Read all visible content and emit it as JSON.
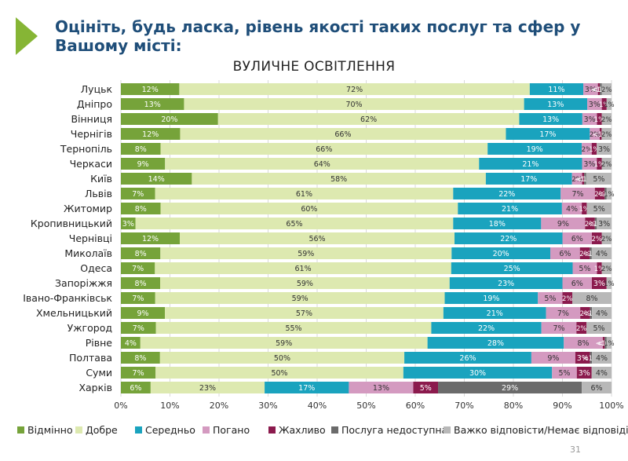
{
  "slide": {
    "heading_line1": "Оцініть, будь ласка, рівень якості таких послуг та сфер у",
    "heading_line2": "Вашому місті:",
    "page_number": "31"
  },
  "colors": {
    "heading": "#1f4e79",
    "accent_triangle": "#86b535"
  },
  "chart_data": {
    "type": "bar",
    "orientation": "horizontal",
    "stacked": true,
    "percent_stacked": true,
    "title": "ВУЛИЧНЕ ОСВІТЛЕННЯ",
    "xlim": [
      0,
      100
    ],
    "x_ticks": [
      "0%",
      "10%",
      "20%",
      "30%",
      "40%",
      "50%",
      "60%",
      "70%",
      "80%",
      "90%",
      "100%"
    ],
    "grid": true,
    "legend_position": "bottom",
    "categories": [
      "Луцьк",
      "Дніпро",
      "Вінниця",
      "Чернігів",
      "Тернопіль",
      "Черкаси",
      "Київ",
      "Львів",
      "Житомир",
      "Кропивницький",
      "Чернівці",
      "Миколаїв",
      "Одеса",
      "Запоріжжя",
      "Івано-Франківськ",
      "Хмельницький",
      "Ужгород",
      "Рівне",
      "Полтава",
      "Суми",
      "Харків"
    ],
    "series": [
      {
        "name": "Відмінно",
        "color": "#76a33a",
        "values": [
          12,
          13,
          20,
          12,
          8,
          9,
          14,
          7,
          8,
          3,
          12,
          8,
          7,
          8,
          7,
          9,
          7,
          4,
          8,
          7,
          6
        ],
        "labels": [
          "12%",
          "13%",
          "20%",
          "12%",
          "8%",
          "9%",
          "14%",
          "7%",
          "8%",
          "3%",
          "12%",
          "8%",
          "7%",
          "8%",
          "7%",
          "9%",
          "7%",
          "4%",
          "8%",
          "7%",
          "6%"
        ]
      },
      {
        "name": "Добре",
        "color": "#dde9b0",
        "values": [
          72,
          70,
          62,
          66,
          66,
          64,
          58,
          61,
          60,
          65,
          56,
          59,
          61,
          59,
          59,
          57,
          55,
          59,
          50,
          50,
          23
        ],
        "labels": [
          "72%",
          "70%",
          "62%",
          "66%",
          "66%",
          "64%",
          "58%",
          "61%",
          "60%",
          "65%",
          "56%",
          "59%",
          "61%",
          "59%",
          "59%",
          "57%",
          "55%",
          "59%",
          "50%",
          "50%",
          "23%"
        ]
      },
      {
        "name": "Середньо",
        "color": "#1aa3be",
        "values": [
          11,
          13,
          13,
          17,
          19,
          21,
          17,
          22,
          21,
          18,
          22,
          20,
          25,
          23,
          19,
          21,
          22,
          28,
          26,
          30,
          17
        ],
        "labels": [
          "11%",
          "13%",
          "13%",
          "17%",
          "19%",
          "21%",
          "17%",
          "22%",
          "21%",
          "18%",
          "22%",
          "20%",
          "25%",
          "23%",
          "19%",
          "21%",
          "22%",
          "28%",
          "26%",
          "30%",
          "17%"
        ]
      },
      {
        "name": "Погано",
        "color": "#d49ac0",
        "values": [
          3,
          3,
          3,
          2,
          2,
          3,
          2,
          7,
          4,
          9,
          6,
          6,
          5,
          6,
          5,
          7,
          7,
          8,
          9,
          5,
          13
        ],
        "labels": [
          "3%",
          "3%",
          "3%",
          "2%",
          "2%",
          "3%",
          "2%",
          "7%",
          "4%",
          "9%",
          "6%",
          "6%",
          "5%",
          "6%",
          "5%",
          "7%",
          "7%",
          "8%",
          "9%",
          "5%",
          "13%"
        ]
      },
      {
        "name": "Жахливо",
        "color": "#8b1a4d",
        "values": [
          0.4,
          1,
          1,
          0.4,
          1,
          1,
          0.4,
          2,
          1,
          2,
          2,
          2,
          1,
          3,
          2,
          2,
          2,
          0.4,
          3,
          3,
          5
        ],
        "labels": [
          "<1%",
          "1%",
          "1%",
          "<1%",
          "1%",
          "1%",
          "<1%",
          "2%",
          "1%",
          "2%",
          "2%",
          "2%",
          "1%",
          "3%",
          "2%",
          "2%",
          "2%",
          "<1%",
          "3%",
          "3%",
          "5%"
        ]
      },
      {
        "name": "Послуга недоступна",
        "color": "#6b6b6b",
        "values": [
          0.4,
          0,
          0,
          0,
          0,
          0,
          0.4,
          0.4,
          0,
          0.4,
          0,
          0.4,
          0,
          0,
          0,
          0.4,
          0,
          0.4,
          0.4,
          0,
          29
        ],
        "labels": [
          "<1%",
          "",
          "",
          "",
          "",
          "",
          "<1%",
          "<1%",
          "",
          "<1%",
          "",
          "<1%",
          "",
          "",
          "",
          "<1%",
          "",
          "<1%",
          "<1%",
          "",
          "29%"
        ]
      },
      {
        "name": "Важко відповісти/Немає відповіді",
        "color": "#b8b8b8",
        "values": [
          2,
          1,
          2,
          2,
          3,
          2,
          5,
          1,
          5,
          3,
          2,
          4,
          2,
          1,
          8,
          4,
          5,
          1,
          4,
          4,
          6
        ],
        "labels": [
          "2%",
          "1%",
          "2%",
          "2%",
          "3%",
          "2%",
          "5%",
          "1%",
          "5%",
          "3%",
          "2%",
          "4%",
          "2%",
          "1%",
          "8%",
          "4%",
          "5%",
          "1%",
          "4%",
          "4%",
          "6%"
        ]
      }
    ]
  }
}
